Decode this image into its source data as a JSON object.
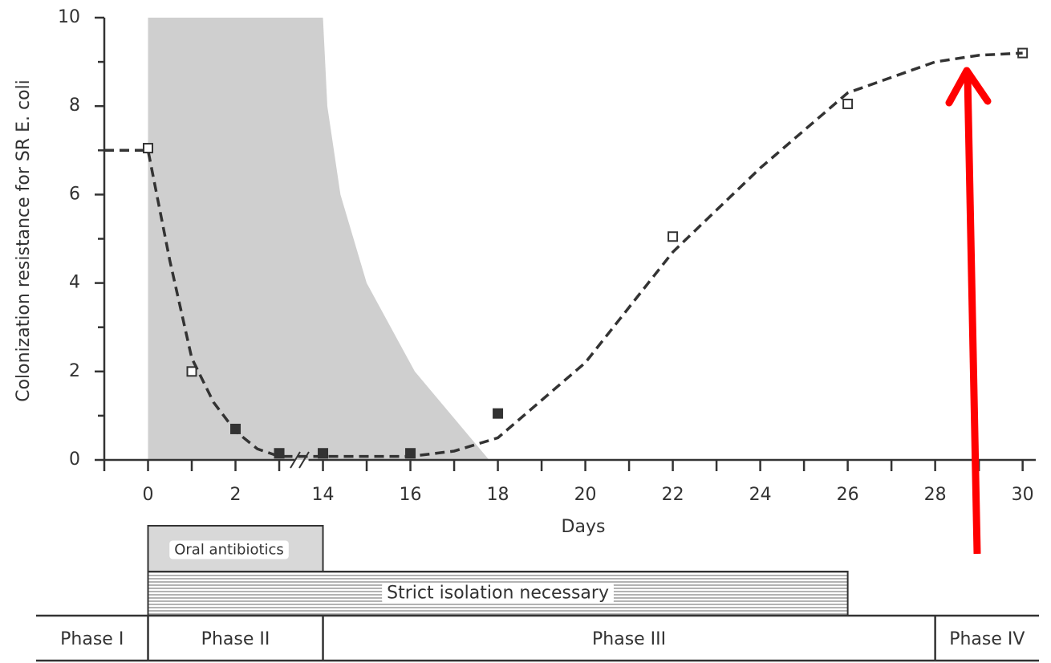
{
  "chart_data": {
    "type": "scatter",
    "ylabel": "Colonization resistance for SR E. coli",
    "xlabel": "Days",
    "xlim": [
      -1,
      30.3
    ],
    "x_break": [
      4,
      14
    ],
    "ylim": [
      0,
      10
    ],
    "xticks": [
      0,
      2,
      14,
      16,
      18,
      20,
      22,
      24,
      26,
      28,
      30
    ],
    "xminor_ticks": [
      -1,
      1,
      3,
      15,
      17,
      19,
      21,
      23,
      25,
      27,
      29
    ],
    "yticks": [
      0,
      2,
      4,
      6,
      8,
      10
    ],
    "yminor_ticks": [
      1,
      3,
      5,
      7,
      9
    ],
    "series": [
      {
        "marker": "open",
        "color": "#333333",
        "x": [
          0,
          1,
          22,
          26,
          30
        ],
        "values": [
          7.05,
          2.0,
          5.05,
          8.05,
          9.2
        ]
      },
      {
        "marker": "filled",
        "color": "#333333",
        "x": [
          2,
          3,
          14,
          16,
          18
        ],
        "values": [
          0.7,
          0.15,
          0.15,
          0.15,
          1.05
        ]
      },
      {
        "marker": "dashed-line",
        "color": "#333333",
        "x": [
          -1,
          0,
          0.5,
          1,
          1.5,
          2,
          2.5,
          3,
          14,
          16,
          17,
          18,
          20,
          22,
          24,
          26,
          28,
          29,
          30
        ],
        "values": [
          7.0,
          7.0,
          4.5,
          2.3,
          1.3,
          0.65,
          0.25,
          0.08,
          0.08,
          0.08,
          0.2,
          0.5,
          2.2,
          4.7,
          6.6,
          8.3,
          9.0,
          9.15,
          9.2
        ]
      }
    ],
    "shaded_area": {
      "color": "#cfcfcf",
      "x": [
        0,
        14,
        14.1,
        14.4,
        15,
        16.1,
        17.8,
        0
      ],
      "values": [
        10,
        10,
        8,
        6,
        4,
        2,
        0,
        0
      ]
    },
    "bars": [
      {
        "label": "Oral antibiotics",
        "start": 0,
        "end": 14,
        "style": "shaded"
      },
      {
        "label": "Strict isolation necessary",
        "start": 0,
        "end": 26,
        "style": "hatched"
      }
    ],
    "phases": [
      {
        "label": "Phase I",
        "start": null,
        "end": 0
      },
      {
        "label": "Phase II",
        "start": 0,
        "end": 14
      },
      {
        "label": "Phase III",
        "start": 14,
        "end": 28
      },
      {
        "label": "Phase IV",
        "start": 28,
        "end": null
      }
    ]
  }
}
